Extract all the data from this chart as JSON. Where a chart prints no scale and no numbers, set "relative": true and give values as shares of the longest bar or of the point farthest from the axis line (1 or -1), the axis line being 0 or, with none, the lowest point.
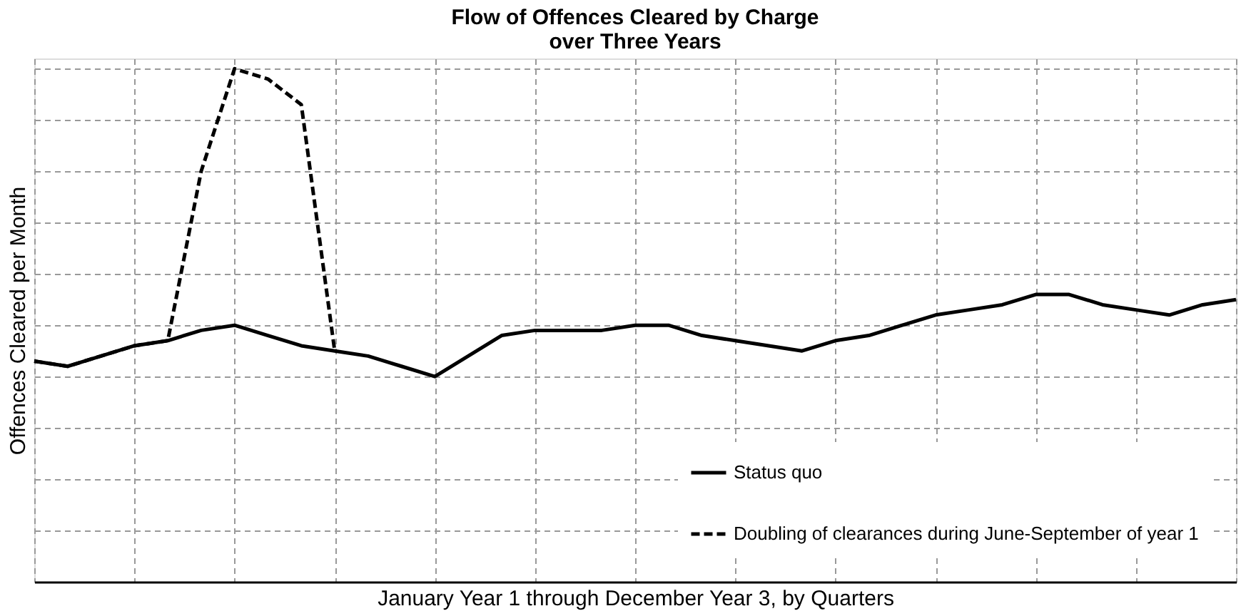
{
  "chart_data": {
    "type": "line",
    "title": "Flow of Offences Cleared by Charge over Three Years",
    "xlabel": "January Year 1  through December Year 3, by Quarters",
    "ylabel": "Offences Cleared per Month",
    "relative": true,
    "categories": [
      null,
      null,
      null,
      null,
      null,
      null,
      null,
      null,
      null,
      null,
      null,
      null,
      null,
      null,
      null,
      null,
      null,
      null,
      null,
      null,
      null,
      null,
      null,
      null,
      null,
      null,
      null,
      null,
      null,
      null,
      null,
      null,
      null,
      null,
      null,
      null,
      null
    ],
    "grid": true,
    "legend": "bottom right",
    "series": [
      {
        "name": "Status quo",
        "color": "#000000",
        "line_style": "solid",
        "values": [
          0.43,
          0.42,
          0.44,
          0.46,
          0.47,
          0.49,
          0.5,
          0.48,
          0.46,
          0.45,
          0.44,
          0.42,
          0.4,
          0.44,
          0.48,
          0.49,
          0.49,
          0.49,
          0.5,
          0.5,
          0.48,
          0.47,
          0.46,
          0.45,
          0.47,
          0.48,
          0.5,
          0.52,
          0.53,
          0.54,
          0.56,
          0.56,
          0.54,
          0.53,
          0.52,
          0.54,
          0.55
        ]
      },
      {
        "name": "Doubling of clearances during June-September of year 1",
        "color": "#000000",
        "line_style": "dashed",
        "values": [
          0.43,
          0.42,
          0.44,
          0.46,
          0.47,
          0.8,
          1.0,
          0.98,
          0.93,
          0.45,
          null,
          null,
          null,
          null,
          null,
          null,
          null,
          null,
          null,
          null,
          null,
          null,
          null,
          null,
          null,
          null,
          null,
          null,
          null,
          null,
          null,
          null,
          null,
          null,
          null,
          null,
          null
        ]
      }
    ]
  }
}
